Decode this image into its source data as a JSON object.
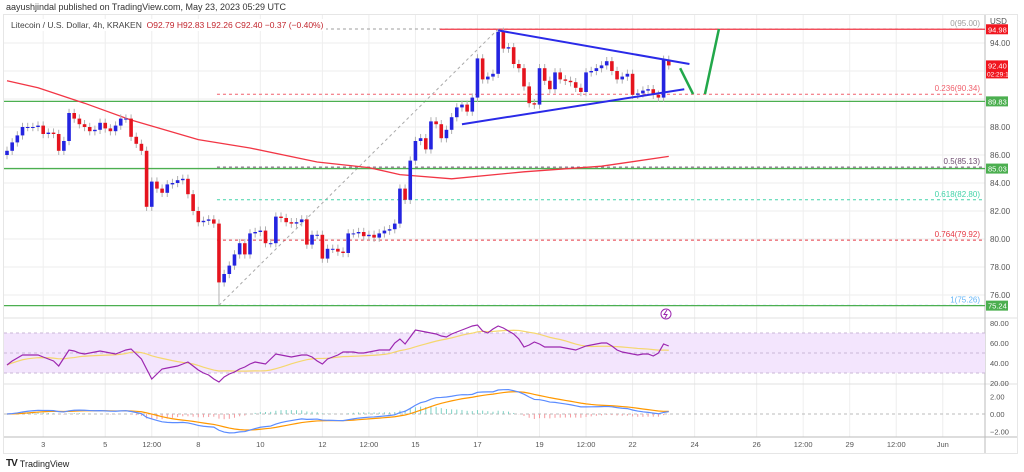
{
  "publisher_line": "aayushjindal published on TradingView.com, May 23, 2023 05:29 UTC",
  "legend": {
    "symbol": "Litecoin / U.S. Dollar, 4h, KRAKEN",
    "open": "O92.79",
    "high": "H92.83",
    "low": "L92.26",
    "close": "C92.40",
    "change": "−0.37 (−0.40%)"
  },
  "brand": "TradingView",
  "currency": "USD",
  "colors": {
    "bull": "#2424e0",
    "bear": "#e5141e",
    "wick": "#b0b0b0",
    "sma": "#f23645",
    "support": "#4caf50",
    "trend": "#2a2ae8",
    "arrow": "#22a84a",
    "rsi": "#9c27b0",
    "rsi_ma": "#f5d76e",
    "rsi_band": "#f3e5fd",
    "macd": "#5b8cff",
    "signal": "#ff9800"
  },
  "chart_data": {
    "type": "candlestick",
    "interval": "4h",
    "first_candle": "2023-05-01T20:00",
    "closes": [
      86.3,
      86.9,
      87.4,
      88.0,
      88.0,
      88.0,
      88.1,
      87.5,
      87.6,
      87.5,
      86.3,
      87.0,
      89.0,
      88.6,
      88.2,
      88.0,
      87.7,
      87.8,
      88.3,
      87.9,
      87.7,
      88.1,
      88.6,
      88.6,
      87.3,
      86.8,
      86.3,
      82.3,
      84.1,
      83.6,
      83.3,
      83.9,
      84.0,
      84.2,
      84.3,
      83.2,
      82.0,
      81.2,
      81.3,
      81.4,
      81.1,
      76.9,
      77.5,
      78.1,
      78.9,
      79.7,
      78.9,
      80.4,
      80.5,
      80.6,
      79.7,
      79.7,
      81.6,
      81.5,
      81.2,
      81.1,
      81.2,
      81.4,
      79.6,
      80.3,
      80.3,
      78.6,
      79.3,
      79.3,
      79.1,
      79.0,
      80.4,
      80.4,
      80.5,
      80.2,
      80.3,
      80.1,
      80.4,
      80.6,
      80.7,
      81.1,
      83.6,
      82.8,
      85.6,
      87.0,
      87.2,
      86.4,
      88.4,
      88.2,
      87.2,
      87.8,
      88.7,
      89.4,
      89.6,
      89.1,
      90.1,
      92.9,
      91.4,
      91.6,
      91.8,
      94.8,
      93.6,
      93.7,
      92.5,
      92.2,
      90.9,
      89.7,
      89.6,
      92.2,
      91.3,
      90.7,
      91.9,
      91.4,
      91.3,
      91.2,
      90.8,
      90.5,
      91.9,
      92.0,
      92.2,
      92.4,
      92.7,
      92.0,
      91.4,
      91.6,
      91.8,
      90.3,
      90.4,
      90.6,
      90.7,
      90.3,
      90.1,
      92.8,
      92.4
    ],
    "swing_low": 75.26,
    "swing_high": 95.0,
    "sma100": [
      [
        0,
        91.3
      ],
      [
        6,
        90.8
      ],
      [
        15,
        89.7
      ],
      [
        24,
        88.5
      ],
      [
        37,
        87.1
      ],
      [
        47,
        86.5
      ],
      [
        60,
        85.5
      ],
      [
        70,
        85.1
      ],
      [
        76,
        84.6
      ],
      [
        86,
        84.3
      ],
      [
        100,
        84.8
      ],
      [
        115,
        85.2
      ],
      [
        128,
        85.9
      ]
    ],
    "fib_levels": [
      {
        "label": "0(95.00)",
        "price": 95.0,
        "color": "#9e9e9e"
      },
      {
        "label": "0.236(90.34)",
        "price": 90.34,
        "color": "#f0616d"
      },
      {
        "label": "0.5(85.13)",
        "price": 85.13,
        "color": "#6d4c6f"
      },
      {
        "label": "0.618(82.80)",
        "price": 82.8,
        "color": "#42d3a8"
      },
      {
        "label": "0.764(79.92)",
        "price": 79.92,
        "color": "#e53945"
      },
      {
        "label": "1(75.26)",
        "price": 75.26,
        "color": "#64b5f6"
      }
    ],
    "resistance": {
      "price": 94.98,
      "label": "94.98"
    },
    "supports": [
      {
        "price": 89.83,
        "label": "89.83"
      },
      {
        "price": 85.03,
        "label": "85.03"
      },
      {
        "price": 75.24,
        "label": "75.24"
      }
    ],
    "last_price": {
      "label": "92.40",
      "countdown": "02:29:12",
      "price": 92.4
    },
    "triangle_upper": [
      [
        95,
        94.9
      ],
      [
        132,
        92.5
      ]
    ],
    "triangle_lower": [
      [
        88,
        88.2
      ],
      [
        131,
        90.7
      ]
    ],
    "projection": [
      [
        130.2,
        92.2
      ],
      [
        132.7,
        90.35
      ],
      [
        135,
        90.35
      ],
      [
        137.7,
        95.0
      ]
    ],
    "price_ticks": [
      "94.00",
      "88.00",
      "86.00",
      "84.00",
      "82.00",
      "80.00",
      "78.00",
      "76.00"
    ],
    "price_tick_values": [
      94,
      88,
      86,
      84,
      82,
      80,
      78,
      76
    ],
    "x_labels": [
      {
        "t": "2023-05-03T00:00",
        "label": "3"
      },
      {
        "t": "2023-05-05T00:00",
        "label": "5"
      },
      {
        "t": "2023-05-06T12:00",
        "label": "12:00"
      },
      {
        "t": "2023-05-08T00:00",
        "label": "8"
      },
      {
        "t": "2023-05-10T00:00",
        "label": "10"
      },
      {
        "t": "2023-05-12T00:00",
        "label": "12"
      },
      {
        "t": "2023-05-13T12:00",
        "label": "12:00"
      },
      {
        "t": "2023-05-15T00:00",
        "label": "15"
      },
      {
        "t": "2023-05-17T00:00",
        "label": "17"
      },
      {
        "t": "2023-05-19T00:00",
        "label": "19"
      },
      {
        "t": "2023-05-20T12:00",
        "label": "12:00"
      },
      {
        "t": "2023-05-22T00:00",
        "label": "22"
      },
      {
        "t": "2023-05-24T00:00",
        "label": "24"
      },
      {
        "t": "2023-05-26T00:00",
        "label": "26"
      },
      {
        "t": "2023-05-27T12:00",
        "label": "12:00"
      },
      {
        "t": "2023-05-29T00:00",
        "label": "29"
      },
      {
        "t": "2023-05-30T12:00",
        "label": "12:00"
      },
      {
        "t": "2023-06-01T00:00",
        "label": "Jun"
      }
    ],
    "rsi": {
      "values": [
        38,
        42,
        45,
        48,
        48,
        48,
        48,
        46,
        44,
        42,
        37,
        45,
        53,
        52,
        50,
        49,
        50,
        51,
        52,
        51,
        50,
        49,
        51,
        53,
        54,
        49,
        44,
        34,
        24,
        29,
        34,
        35,
        36,
        37,
        39,
        41,
        37,
        33,
        30,
        28,
        24,
        21,
        26,
        29,
        31,
        34,
        36,
        39,
        41,
        40,
        39,
        44,
        49,
        48,
        47,
        46,
        47,
        48,
        48,
        46,
        42,
        39,
        44,
        46,
        48,
        51,
        51,
        51,
        50,
        50,
        51,
        52,
        53,
        53,
        53,
        60,
        64,
        59,
        66,
        73,
        72,
        71,
        70,
        69,
        67,
        66,
        69,
        71,
        73,
        75,
        77,
        78,
        72,
        70,
        74,
        77,
        75,
        72,
        69,
        64,
        56,
        58,
        61,
        59,
        56,
        56,
        56,
        56,
        55,
        54,
        53,
        55,
        57,
        58,
        59,
        60,
        60,
        57,
        53,
        51,
        50,
        49,
        48,
        49,
        49,
        47,
        50,
        59,
        57
      ],
      "band": [
        30,
        70
      ],
      "ticks": [
        "80.00",
        "60.00",
        "40.00",
        "20.00"
      ],
      "tick_values": [
        80,
        60,
        40,
        20
      ]
    },
    "macd": {
      "ticks": [
        "2.00",
        "0.00",
        "−2.00"
      ],
      "tick_values": [
        2,
        0,
        -2
      ]
    }
  }
}
